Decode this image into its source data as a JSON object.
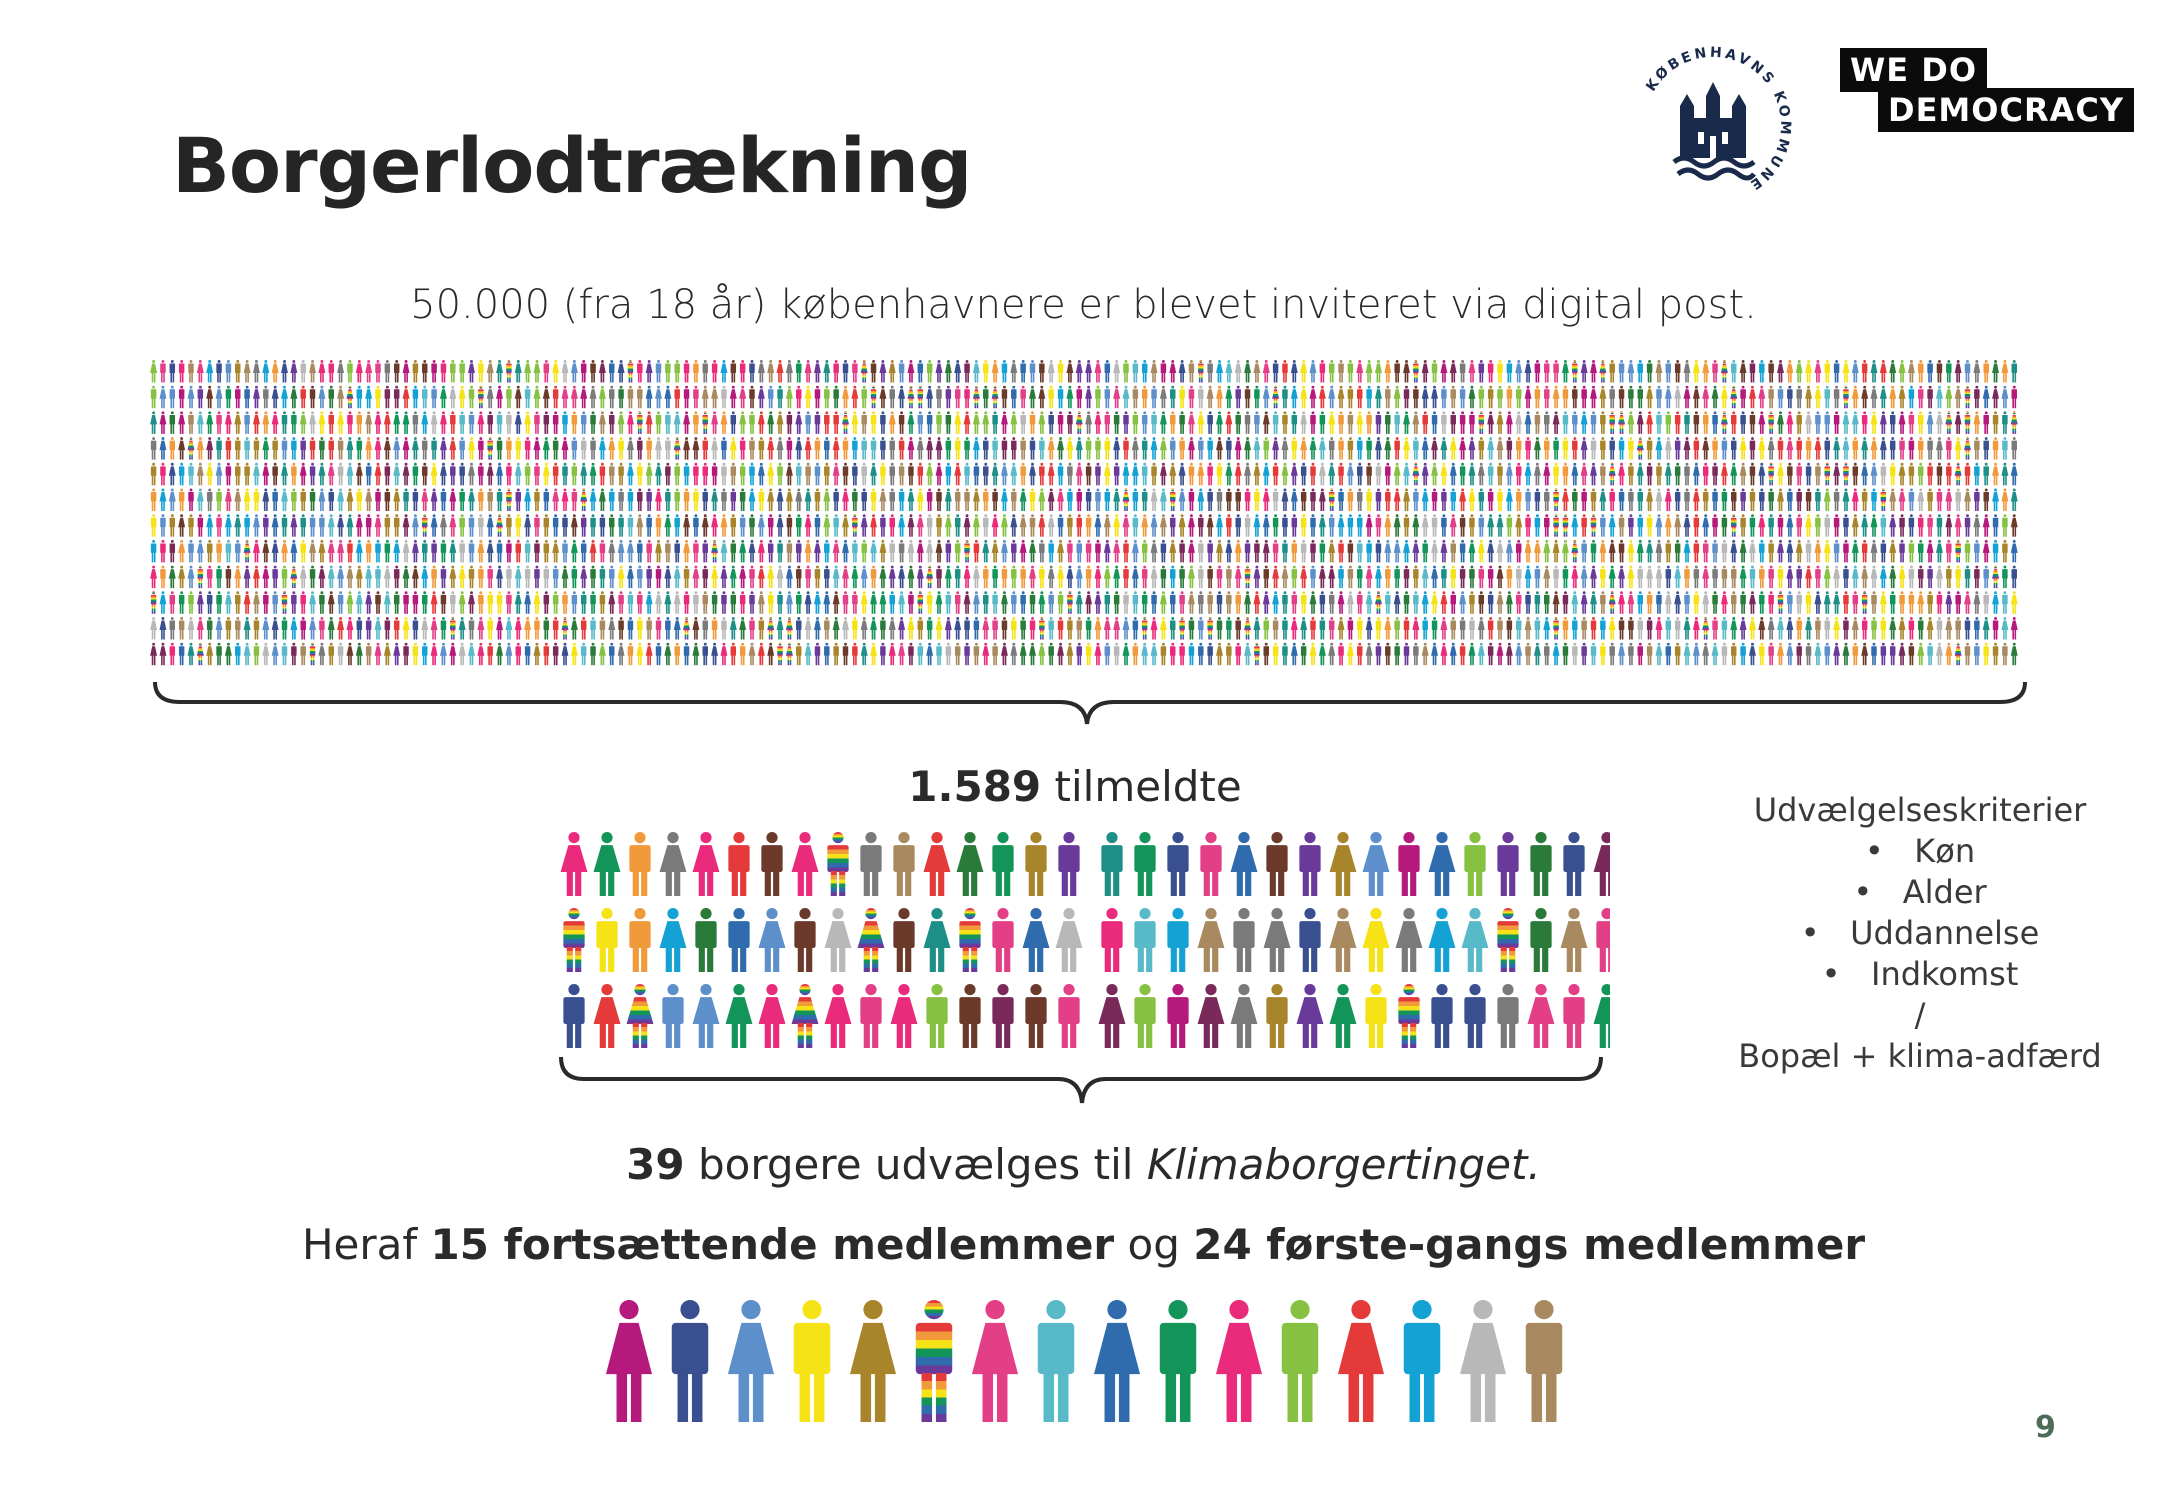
{
  "page_title": "Borgerlodtrækning",
  "intro_text": "50.000 (fra 18 år) københavnere er blevet inviteret via digital post.",
  "registered": {
    "number": "1.589",
    "text": " tilmeldte"
  },
  "selected": {
    "number": "39",
    "text": " borgere udvælges til ",
    "italic": "Klimaborgertinget."
  },
  "breakdown": {
    "prefix": "Heraf ",
    "continuing": "15 fortsættende medlemmer",
    "middle": " og ",
    "first_time": "24 første-gangs medlemmer"
  },
  "criteria": {
    "heading": "Udvælgelseskriterier",
    "items": [
      "Køn",
      "Alder",
      "Uddannelse",
      "Indkomst"
    ],
    "separator": "/",
    "footer": "Bopæl + klima-adfærd"
  },
  "logos": {
    "kk_ring_text": "KØBENHAVNS KOMMUNE",
    "wdd_line1": "WE  DO",
    "wdd_line2": "DEMOCRACY"
  },
  "page_number": "9",
  "colors": {
    "palette": [
      "#b5197c",
      "#3a4f8f",
      "#5d8fca",
      "#f5e317",
      "#a8852a",
      "#e23f87",
      "#58b9c9",
      "#2f6bad",
      "#13955a",
      "#ea2a7a",
      "#86c142",
      "#e53a3a",
      "#14a2d5",
      "#b8b8b8",
      "#a98a60",
      "#7a2a5a",
      "#6b3a2a",
      "#f19a3b",
      "#1e8f87",
      "#6a3a9a",
      "#2a7a3a",
      "#7a7a7a"
    ],
    "rainbow": [
      "#e53a3a",
      "#f19a3b",
      "#f5e317",
      "#13955a",
      "#2f6bad",
      "#6a3a9a"
    ],
    "page_number": "#4e6b56"
  }
}
